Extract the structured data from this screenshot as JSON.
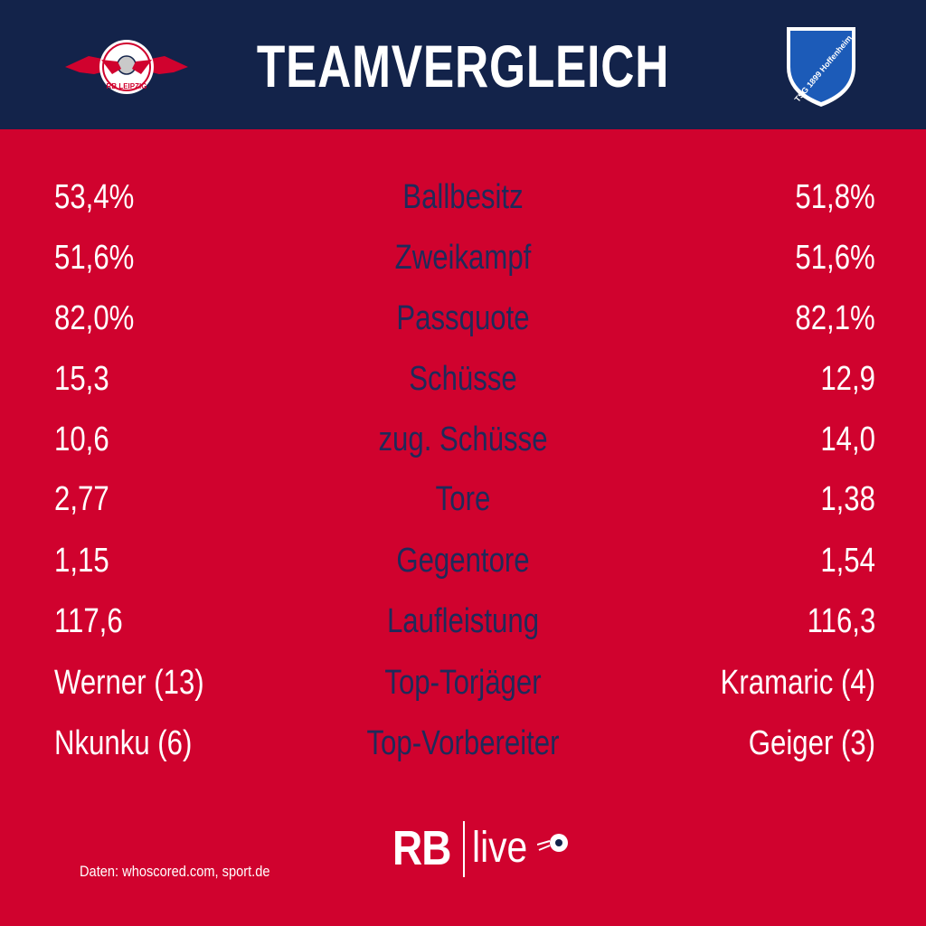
{
  "header": {
    "title": "TEAMVERGLEICH",
    "left_logo_icon": "rb-leipzig-logo",
    "right_logo_icon": "tsg-1899-hoffenheim-logo",
    "left_logo_text": "RB LEIPZIG",
    "right_logo_text": "TSG 1899 Hoffenheim"
  },
  "stats": [
    {
      "left": "53,4%",
      "label": "Ballbesitz",
      "right": "51,8%"
    },
    {
      "left": "51,6%",
      "label": "Zweikampf",
      "right": "51,6%"
    },
    {
      "left": "82,0%",
      "label": "Passquote",
      "right": "82,1%"
    },
    {
      "left": "15,3",
      "label": "Schüsse",
      "right": "12,9"
    },
    {
      "left": "10,6",
      "label": "zug. Schüsse",
      "right": "14,0"
    },
    {
      "left": "2,77",
      "label": "Tore",
      "right": "1,38"
    },
    {
      "left": "1,15",
      "label": "Gegentore",
      "right": "1,54"
    },
    {
      "left": "117,6",
      "label": "Laufleistung",
      "right": "116,3"
    },
    {
      "left": "Werner (13)",
      "label": "Top-Torjäger",
      "right": "Kramaric (4)"
    },
    {
      "left": "Nkunku (6)",
      "label": "Top-Vorbereiter",
      "right": "Geiger (3)"
    }
  ],
  "footer": {
    "source": "Daten: whoscored.com, sport.de",
    "brand_rb": "RB",
    "brand_live": "live",
    "brand_icon": "football-icon"
  },
  "colors": {
    "background": "#d0022e",
    "header": "#13234a",
    "label": "#1f2a5a",
    "value": "#ffffff"
  }
}
